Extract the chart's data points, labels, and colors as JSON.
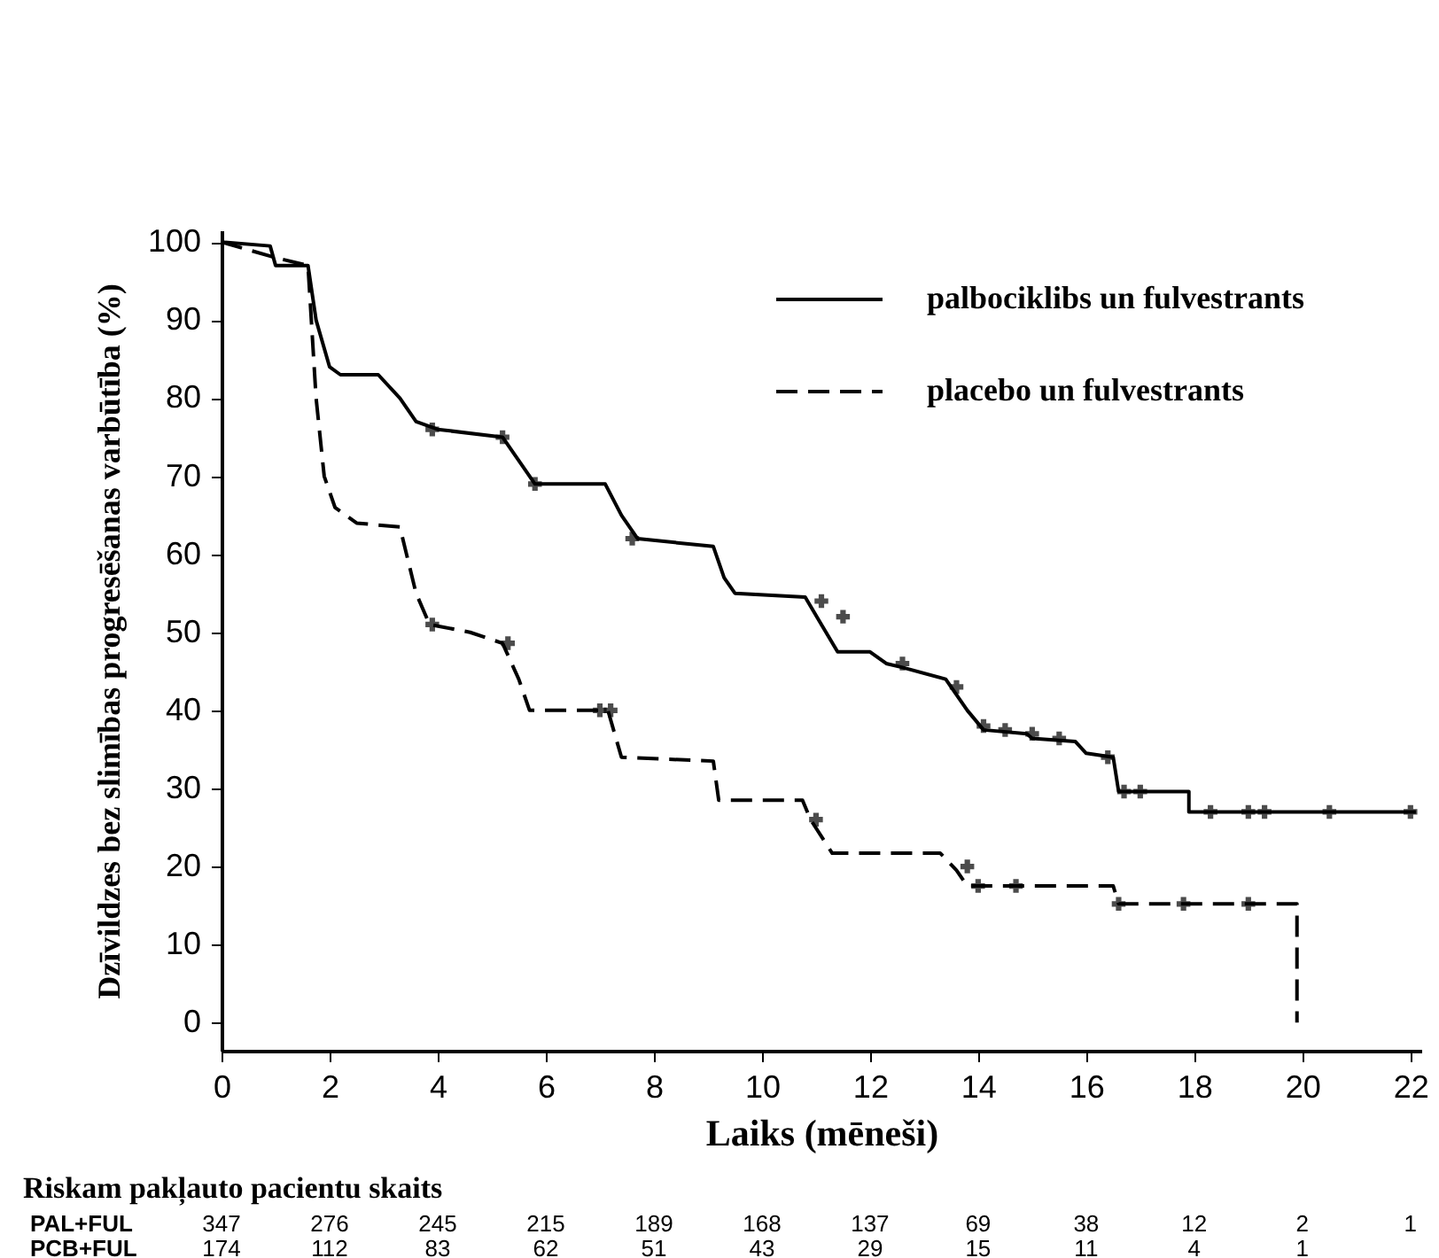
{
  "chart_data": {
    "type": "line",
    "xlabel": "Laiks (mēneši)",
    "ylabel": "Dzīvildzes bez slimības progresēšanas varbūtība (%)",
    "xlim": [
      0,
      22.2
    ],
    "xticks": [
      0,
      2,
      4,
      6,
      8,
      10,
      12,
      14,
      16,
      18,
      20,
      22
    ],
    "ylim": [
      -3.6,
      101.5
    ],
    "yticks": [
      0,
      10,
      20,
      30,
      40,
      50,
      60,
      70,
      80,
      90,
      100
    ],
    "grid": false,
    "legend": "top right",
    "series": [
      {
        "name": "palbociklibs un fulvestrants",
        "color": "#000000",
        "line_style": "solid",
        "x": [
          0,
          0.9,
          1.0,
          1.6,
          1.75,
          2.0,
          2.2,
          2.9,
          3.3,
          3.6,
          4.0,
          5.2,
          5.5,
          5.8,
          7.1,
          7.4,
          7.7,
          9.1,
          9.3,
          9.5,
          10.8,
          11.1,
          11.4,
          12.0,
          12.3,
          12.6,
          13.4,
          13.8,
          14.1,
          14.9,
          15.0,
          15.8,
          16.0,
          16.5,
          16.6,
          17.9,
          17.9,
          22.1
        ],
        "values": [
          100,
          99.5,
          97,
          97,
          90,
          84,
          83,
          83,
          80,
          77,
          76,
          75,
          72,
          69,
          69,
          65,
          62,
          61,
          57,
          55,
          54.5,
          51,
          47.5,
          47.5,
          46,
          45.5,
          44,
          40,
          37.5,
          37,
          36.4,
          36,
          34.5,
          34,
          29.6,
          29.6,
          27,
          27
        ]
      },
      {
        "name": " placebo un fulvestrants",
        "color": "#000000",
        "line_style": "dashed",
        "x": [
          0,
          1.0,
          1.6,
          1.75,
          1.9,
          2.1,
          2.5,
          3.3,
          3.6,
          3.85,
          4.6,
          5.2,
          5.5,
          5.7,
          7.15,
          7.4,
          9.1,
          9.2,
          10.75,
          10.9,
          11.3,
          13.3,
          13.6,
          13.8,
          16.5,
          16.6,
          19.9,
          19.9
        ],
        "values": [
          100,
          98,
          97,
          80,
          70,
          66,
          64,
          63.5,
          55,
          51,
          50,
          48.6,
          44,
          40,
          40,
          34,
          33.5,
          28.5,
          28.5,
          26,
          21.7,
          21.7,
          19.5,
          17.5,
          17.5,
          15.2,
          15.2,
          0
        ]
      },
      {
        "type": "scatter",
        "marker": "cross",
        "color": "#000000",
        "x": [
          3.9,
          5.2,
          5.8,
          7.6,
          11.1,
          11.5,
          12.6,
          13.6,
          14.1,
          14.5,
          15.0,
          15.5,
          16.4,
          16.7,
          17.0,
          18.3,
          19.0,
          19.3,
          20.5,
          22.0
        ],
        "values": [
          76,
          75,
          69,
          62,
          54,
          52,
          46,
          43,
          38,
          37.5,
          37,
          36.4,
          34,
          29.6,
          29.6,
          27,
          27,
          27,
          27,
          27
        ]
      },
      {
        "type": "scatter",
        "marker": "cross",
        "color": "#000000",
        "x": [
          3.9,
          5.3,
          7.0,
          7.2,
          11.0,
          13.8,
          14.0,
          14.7,
          16.6,
          17.8,
          19.0
        ],
        "values": [
          51,
          48.6,
          40,
          40,
          26,
          20,
          17.5,
          17.5,
          15.2,
          15.2,
          15.2
        ]
      }
    ],
    "annotations": [
      "Riskam pakļauto pacientu skaits",
      "PAL+FUL 347 276 245 215 189 168 137 69 38 12 2 1",
      "PCB+FUL 174 112 83 62 51 43 29 15 11 4 1"
    ]
  }
}
